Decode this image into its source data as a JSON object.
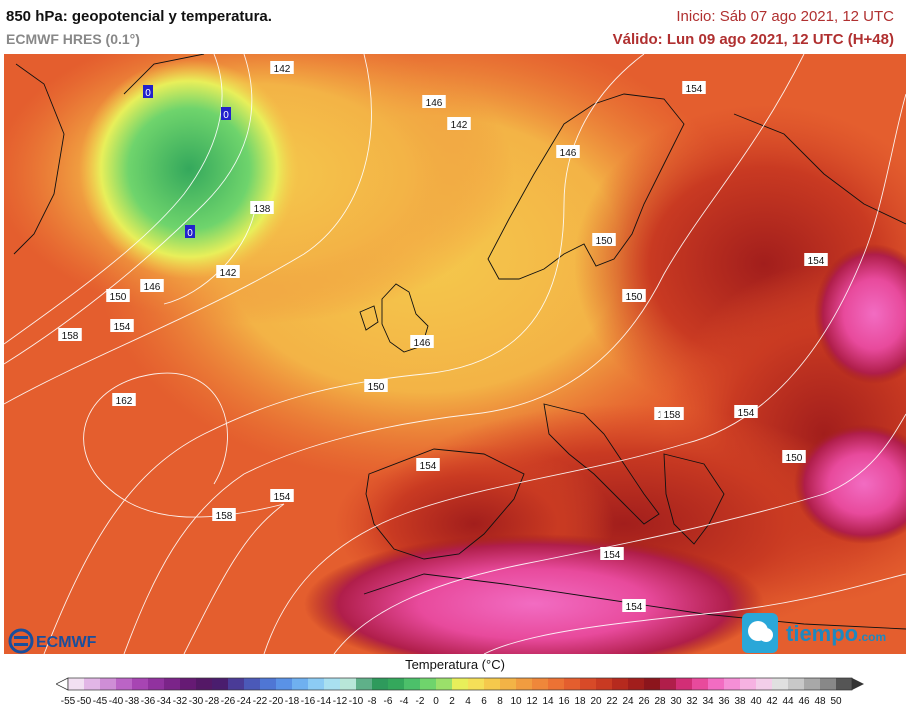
{
  "header": {
    "title": "850 hPa: geopotencial y temperatura.",
    "model": "ECMWF HRES (0.1°)",
    "init": "Inicio: Sáb 07 ago 2021, 12 UTC",
    "valid": "Válido: Lun 09 ago 2021, 12 UTC (H+48)"
  },
  "legend": {
    "title": "Temperatura (°C)",
    "ticks": [
      "-55",
      "-50",
      "-45",
      "-40",
      "-38",
      "-36",
      "-34",
      "-32",
      "-30",
      "-28",
      "-26",
      "-24",
      "-22",
      "-20",
      "-18",
      "-16",
      "-14",
      "-12",
      "-10",
      "-8",
      "-6",
      "-4",
      "-2",
      "0",
      "2",
      "4",
      "6",
      "8",
      "10",
      "12",
      "14",
      "16",
      "18",
      "20",
      "22",
      "24",
      "26",
      "28",
      "30",
      "32",
      "34",
      "36",
      "38",
      "40",
      "42",
      "44",
      "46",
      "48",
      "50"
    ],
    "colors": [
      "#f2e0f2",
      "#e2b6e6",
      "#cf8ed6",
      "#bb64c6",
      "#a745b3",
      "#91329f",
      "#7b2489",
      "#661a74",
      "#541866",
      "#4a1d6e",
      "#4a3b97",
      "#4b59b8",
      "#4f76d4",
      "#5a92e6",
      "#6fb0f0",
      "#8ccbf4",
      "#a9e0f0",
      "#b8e6d8",
      "#5fb089",
      "#2e9a5c",
      "#34a85c",
      "#4cc06a",
      "#6fd46c",
      "#9be06a",
      "#e8ef5a",
      "#f5df58",
      "#f5c94c",
      "#f3b346",
      "#f19c40",
      "#ef873a",
      "#ec7234",
      "#e45e2e",
      "#d84a28",
      "#c93a22",
      "#b62a1e",
      "#a21e1c",
      "#8c151c",
      "#b01e4a",
      "#d22e76",
      "#e84a9c",
      "#f26cc2",
      "#f58fd6",
      "#f6b2e2",
      "#f3cee9",
      "#e0e0e0",
      "#c8c8c8",
      "#a8a8a8",
      "#888888",
      "#555555"
    ]
  },
  "map": {
    "isolines": [
      "142",
      "146",
      "142",
      "146",
      "154",
      "138",
      "150",
      "142",
      "146",
      "150",
      "154",
      "150",
      "154",
      "154",
      "158",
      "154",
      "146",
      "150",
      "162",
      "154",
      "158",
      "158",
      "154",
      "150",
      "154",
      "158"
    ],
    "zero_labels": [
      "0",
      "0",
      "0"
    ]
  },
  "logos": {
    "ecmwf": "ECMWF",
    "tiempo": "tiempo",
    "tiempo_suffix": ".com"
  }
}
